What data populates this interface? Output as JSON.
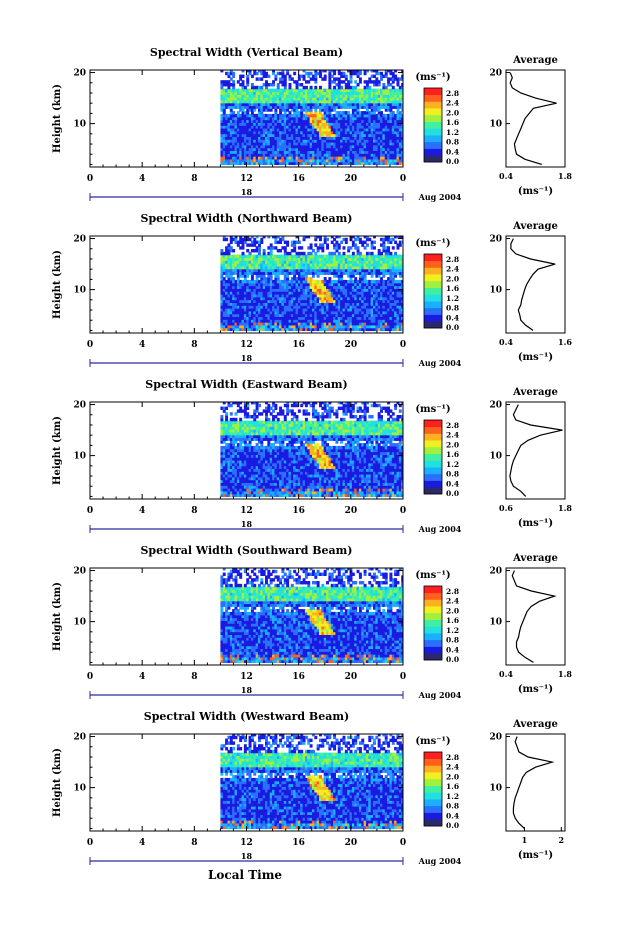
{
  "figure": {
    "xlabel": "Local Time",
    "date_label": "Aug 2004",
    "day_label": "18",
    "avg_title": "Average",
    "unit_label": "(ms⁻¹)",
    "colorbar_ticks": [
      "2.8",
      "2.4",
      "2.0",
      "1.6",
      "1.2",
      "0.8",
      "0.4",
      "0.0"
    ],
    "colormap": [
      "#2a2a6a",
      "#1a1ae0",
      "#2a70ff",
      "#1ab0ff",
      "#20e0e0",
      "#40f0a0",
      "#a0f040",
      "#f0f020",
      "#ffb020",
      "#ff6020",
      "#ff2020"
    ]
  },
  "chart_data": [
    {
      "type": "heatmap",
      "title": "Spectral Width (Vertical Beam)",
      "ylabel": "Height (km)",
      "xticks": [
        "0",
        "4",
        "8",
        "12",
        "16",
        "20",
        "0"
      ],
      "yticks": [
        "20",
        "10"
      ],
      "xlim": [
        0,
        24
      ],
      "ylim": [
        1.5,
        20.5
      ],
      "data_start_hour": 10,
      "colorbar": {
        "range": [
          0.0,
          3.0
        ]
      },
      "profile": {
        "title": "Average",
        "xlabel": "(ms⁻¹)",
        "xticks": [
          "0.4",
          "1.8"
        ],
        "xlim": [
          0.4,
          1.8
        ],
        "height_km": [
          2,
          3,
          4,
          5,
          6,
          7,
          8,
          9,
          10,
          11,
          12,
          13,
          14,
          15,
          16,
          17,
          18,
          19,
          20
        ],
        "value": [
          1.25,
          0.85,
          0.65,
          0.62,
          0.6,
          0.65,
          0.7,
          0.75,
          0.8,
          0.85,
          0.95,
          1.05,
          1.6,
          1.1,
          0.75,
          0.55,
          0.5,
          0.55,
          0.5
        ]
      }
    },
    {
      "type": "heatmap",
      "title": "Spectral Width (Northward Beam)",
      "ylabel": "Height (km)",
      "xticks": [
        "0",
        "4",
        "8",
        "12",
        "16",
        "20",
        "0"
      ],
      "yticks": [
        "20",
        "10"
      ],
      "xlim": [
        0,
        24
      ],
      "ylim": [
        1.5,
        20.5
      ],
      "data_start_hour": 10,
      "colorbar": {
        "range": [
          0.0,
          3.0
        ]
      },
      "profile": {
        "title": "Average",
        "xlabel": "(ms⁻¹)",
        "xticks": [
          "0.4",
          "1.6"
        ],
        "xlim": [
          0.4,
          1.6
        ],
        "height_km": [
          2,
          3,
          4,
          5,
          6,
          7,
          8,
          9,
          10,
          11,
          12,
          13,
          14,
          15,
          16,
          17,
          18,
          19,
          20
        ],
        "value": [
          0.95,
          0.8,
          0.7,
          0.68,
          0.65,
          0.7,
          0.72,
          0.75,
          0.78,
          0.82,
          0.88,
          0.95,
          1.05,
          1.4,
          0.9,
          0.6,
          0.5,
          0.5,
          0.55
        ]
      }
    },
    {
      "type": "heatmap",
      "title": "Spectral Width (Eastward Beam)",
      "ylabel": "Height (km)",
      "xticks": [
        "0",
        "4",
        "8",
        "12",
        "16",
        "20",
        "0"
      ],
      "yticks": [
        "20",
        "10"
      ],
      "xlim": [
        0,
        24
      ],
      "ylim": [
        1.5,
        20.5
      ],
      "data_start_hour": 10,
      "colorbar": {
        "range": [
          0.0,
          3.0
        ]
      },
      "profile": {
        "title": "Average",
        "xlabel": "(ms⁻¹)",
        "xticks": [
          "0.6",
          "1.8"
        ],
        "xlim": [
          0.6,
          1.8
        ],
        "height_km": [
          2,
          3,
          4,
          5,
          6,
          7,
          8,
          9,
          10,
          11,
          12,
          13,
          14,
          15,
          16,
          17,
          18,
          19,
          20
        ],
        "value": [
          1.0,
          0.9,
          0.75,
          0.7,
          0.68,
          0.7,
          0.72,
          0.75,
          0.8,
          0.85,
          0.9,
          1.05,
          1.3,
          1.75,
          1.1,
          0.8,
          0.75,
          0.8,
          0.85
        ]
      }
    },
    {
      "type": "heatmap",
      "title": "Spectral Width (Southward Beam)",
      "ylabel": "Height (km)",
      "xticks": [
        "0",
        "4",
        "8",
        "12",
        "16",
        "20",
        "0"
      ],
      "yticks": [
        "20",
        "10"
      ],
      "xlim": [
        0,
        24
      ],
      "ylim": [
        1.5,
        20.5
      ],
      "data_start_hour": 10,
      "colorbar": {
        "range": [
          0.0,
          3.0
        ]
      },
      "profile": {
        "title": "Average",
        "xlabel": "(ms⁻¹)",
        "xticks": [
          "0.4",
          "1.8"
        ],
        "xlim": [
          0.4,
          1.8
        ],
        "height_km": [
          2,
          3,
          4,
          5,
          6,
          7,
          8,
          9,
          10,
          11,
          12,
          13,
          14,
          15,
          16,
          17,
          18,
          19,
          20
        ],
        "value": [
          1.05,
          0.85,
          0.7,
          0.65,
          0.65,
          0.7,
          0.72,
          0.75,
          0.8,
          0.85,
          0.9,
          1.0,
          1.2,
          1.55,
          1.0,
          0.65,
          0.6,
          0.55,
          0.6
        ]
      }
    },
    {
      "type": "heatmap",
      "title": "Spectral Width (Westward Beam)",
      "ylabel": "Height (km)",
      "xticks": [
        "0",
        "4",
        "8",
        "12",
        "16",
        "20",
        "0"
      ],
      "yticks": [
        "20",
        "10"
      ],
      "xlim": [
        0,
        24
      ],
      "ylim": [
        1.5,
        20.5
      ],
      "data_start_hour": 10,
      "colorbar": {
        "range": [
          0.0,
          3.0
        ]
      },
      "profile": {
        "title": "Average",
        "xlabel": "(ms⁻¹)",
        "xticks": [
          "1",
          "2"
        ],
        "xlim": [
          0.5,
          2.1
        ],
        "height_km": [
          2,
          3,
          4,
          5,
          6,
          7,
          8,
          9,
          10,
          11,
          12,
          13,
          14,
          15,
          16,
          17,
          18,
          19,
          20
        ],
        "value": [
          1.0,
          0.85,
          0.75,
          0.7,
          0.7,
          0.72,
          0.75,
          0.8,
          0.85,
          0.9,
          0.95,
          1.05,
          1.3,
          1.75,
          1.1,
          0.85,
          0.8,
          0.75,
          0.8
        ]
      }
    }
  ]
}
